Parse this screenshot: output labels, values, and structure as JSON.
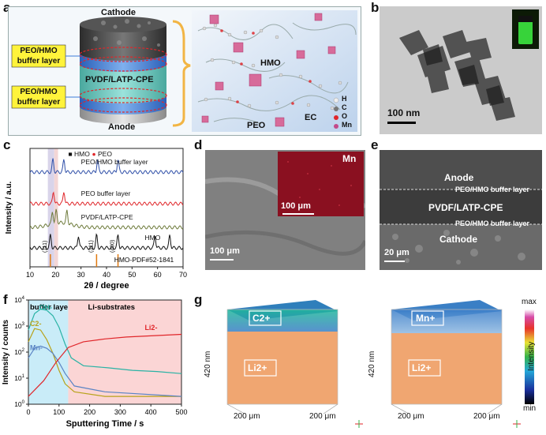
{
  "panels": {
    "a": {
      "letter": "a",
      "cathode": "Cathode",
      "anode": "Anode",
      "buffer_top": [
        "PEO/HMO",
        "buffer layer"
      ],
      "buffer_bottom": [
        "PEO/HMO",
        "buffer layer"
      ],
      "electrolyte": "PVDF/LATP-CPE",
      "hmo": "HMO",
      "peo": "PEO",
      "ec": "EC",
      "legend": [
        "H",
        "C",
        "O",
        "Mn"
      ],
      "colors": {
        "layer_teal": "#7fd6cf",
        "buffer_blue": "#3d7bd8",
        "highlight_yellow": "#fff33b",
        "panel_bg": "#f4f8fb",
        "mol_bg": "#c6d9ee"
      }
    },
    "b": {
      "letter": "b",
      "scalebar": "100 nm"
    },
    "c": {
      "letter": "c"
    },
    "d": {
      "letter": "d",
      "map_label": "Mn",
      "scalebar_inset": "100 μm",
      "scalebar": "100 μm"
    },
    "e": {
      "letter": "e",
      "anode": "Anode",
      "buffer_top": "PEO/HMO buffer layer",
      "cpe": "PVDF/LATP-CPE",
      "buffer_bottom": "PEO/HMO buffer layer",
      "cathode": "Cathode",
      "scalebar": "20 μm"
    },
    "f": {
      "letter": "f"
    },
    "g": {
      "letter": "g",
      "left_top_label": "C2+",
      "right_top_label": "Mn+",
      "bottom_label": "Li2+",
      "height": "420 nm",
      "width": "200 μm",
      "depth": "200 μm",
      "colorbar_max": "max",
      "colorbar_min": "min",
      "colorbar_label": "Intensity"
    }
  },
  "chart_data": [
    {
      "type": "line",
      "panel": "c",
      "xlabel": "2θ / degree",
      "ylabel": "Intensity / a.u.",
      "xlim": [
        10,
        70
      ],
      "xticks": [
        10,
        20,
        30,
        40,
        50,
        60,
        70
      ],
      "legend": [
        {
          "name": "HMO",
          "marker": "■",
          "color": "#111111"
        },
        {
          "name": "PEO",
          "marker": "●",
          "color": "#e0262a"
        }
      ],
      "series": [
        {
          "name": "PEO/HMO buffer layer",
          "color": "#2f4fa8",
          "peaks": [
            19.0,
            23.3,
            36.5,
            44.5
          ]
        },
        {
          "name": "PEO buffer layer",
          "color": "#e0262a",
          "peaks": [
            19.2,
            23.3
          ]
        },
        {
          "name": "PVDF/LATP-CPE",
          "color": "#6d7a3a",
          "peaks": [
            18.8,
            20.3,
            24.5
          ]
        },
        {
          "name": "HMO",
          "color": "#111111",
          "peaks": [
            18.0,
            29.0,
            36.1,
            44.5,
            59.0,
            64.8
          ]
        }
      ],
      "reference": {
        "name": "HMO-PDF#52-1841",
        "color": "#e07a10",
        "indices": [
          {
            "hkl": "(111)",
            "x": 18.0
          },
          {
            "hkl": "(311)",
            "x": 36.1
          },
          {
            "hkl": "(400)",
            "x": 44.5
          }
        ]
      }
    },
    {
      "type": "line",
      "panel": "f",
      "xlabel": "Sputtering Time / s",
      "ylabel": "Intensity / counts",
      "xlim": [
        0,
        500
      ],
      "ylim": [
        1,
        10000
      ],
      "yscale": "log",
      "xticks": [
        0,
        100,
        200,
        300,
        400,
        500
      ],
      "yticks": [
        "10^0",
        "10^1",
        "10^2",
        "10^3",
        "10^4"
      ],
      "regions": [
        {
          "name": "buffer layer",
          "from": 0,
          "to": 130,
          "color": "#c9ecf8"
        },
        {
          "name": "Li-substrates",
          "from": 130,
          "to": 500,
          "color": "#fbd5d5"
        }
      ],
      "series": [
        {
          "name": "OH-",
          "color": "#2ab3a5",
          "points": [
            [
              0,
              700
            ],
            [
              20,
              3000
            ],
            [
              40,
              4500
            ],
            [
              60,
              4000
            ],
            [
              80,
              2500
            ],
            [
              100,
              900
            ],
            [
              120,
              200
            ],
            [
              140,
              60
            ],
            [
              180,
              30
            ],
            [
              260,
              25
            ],
            [
              340,
              20
            ],
            [
              420,
              18
            ],
            [
              500,
              15
            ]
          ]
        },
        {
          "name": "C2-",
          "color": "#b8a21a",
          "points": [
            [
              0,
              250
            ],
            [
              20,
              800
            ],
            [
              40,
              700
            ],
            [
              60,
              300
            ],
            [
              80,
              90
            ],
            [
              100,
              20
            ],
            [
              120,
              6
            ],
            [
              150,
              3
            ],
            [
              250,
              2
            ],
            [
              500,
              2
            ]
          ]
        },
        {
          "name": "Mn-",
          "color": "#5b84c4",
          "points": [
            [
              0,
              60
            ],
            [
              20,
              140
            ],
            [
              40,
              170
            ],
            [
              60,
              140
            ],
            [
              80,
              90
            ],
            [
              100,
              40
            ],
            [
              120,
              15
            ],
            [
              150,
              5
            ],
            [
              250,
              3
            ],
            [
              500,
              2
            ]
          ]
        },
        {
          "name": "Li2-",
          "color": "#e0262a",
          "points": [
            [
              0,
              2
            ],
            [
              50,
              8
            ],
            [
              90,
              40
            ],
            [
              130,
              150
            ],
            [
              180,
              250
            ],
            [
              250,
              320
            ],
            [
              320,
              380
            ],
            [
              400,
              420
            ],
            [
              500,
              480
            ]
          ]
        }
      ]
    }
  ]
}
